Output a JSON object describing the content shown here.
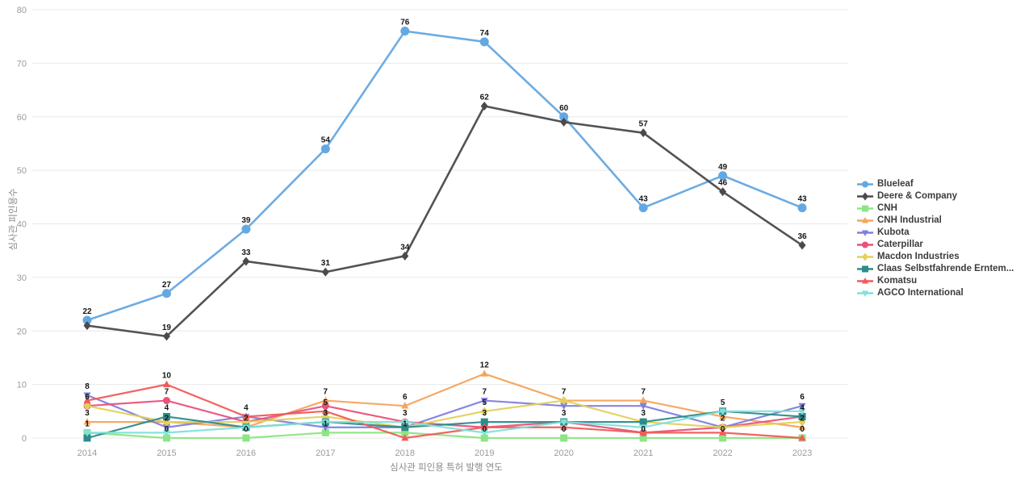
{
  "chart_data": {
    "type": "line",
    "title": "",
    "xlabel": "심사관 피인용 특허 발행 연도",
    "ylabel": "심사관 피인용수",
    "x": [
      2014,
      2015,
      2016,
      2017,
      2018,
      2019,
      2020,
      2021,
      2022,
      2023
    ],
    "ylim": [
      0,
      80
    ],
    "yticks": [
      0,
      10,
      20,
      30,
      40,
      50,
      60,
      70,
      80
    ],
    "grid": true,
    "legend_position": "right",
    "series": [
      {
        "name": "Blueleaf",
        "color": "#64a8e2",
        "marker": "circle",
        "lw": 2.6,
        "ms": 5.5,
        "values": [
          22,
          27,
          39,
          54,
          76,
          74,
          60,
          43,
          49,
          43
        ],
        "labels": [
          22,
          27,
          39,
          54,
          76,
          74,
          60,
          43,
          49,
          43
        ]
      },
      {
        "name": "Deere & Company",
        "color": "#4a4a4a",
        "marker": "diamond",
        "lw": 2.6,
        "ms": 4.5,
        "values": [
          21,
          19,
          33,
          31,
          34,
          62,
          59,
          57,
          46,
          36
        ],
        "labels": [
          null,
          19,
          33,
          31,
          34,
          62,
          null,
          57,
          46,
          36
        ]
      },
      {
        "name": "CNH",
        "color": "#8de584",
        "marker": "square",
        "lw": 2.2,
        "ms": 4.5,
        "values": [
          1,
          0,
          0,
          1,
          1,
          0,
          0,
          0,
          0,
          0
        ],
        "labels": [
          1,
          0,
          0,
          1,
          1,
          0,
          0,
          0,
          0,
          null
        ]
      },
      {
        "name": "CNH Industrial",
        "color": "#f5a45c",
        "marker": "triangle-up",
        "lw": 2.2,
        "ms": 4.5,
        "values": [
          3,
          3,
          2,
          7,
          6,
          12,
          7,
          7,
          4,
          2
        ],
        "labels": [
          3,
          null,
          null,
          7,
          6,
          12,
          null,
          7,
          null,
          2
        ]
      },
      {
        "name": "Kubota",
        "color": "#7f7fe0",
        "marker": "triangle-down",
        "lw": 2.2,
        "ms": 4.5,
        "values": [
          8,
          2,
          4,
          2,
          2,
          7,
          6,
          6,
          2,
          6
        ],
        "labels": [
          8,
          2,
          4,
          null,
          null,
          7,
          null,
          null,
          null,
          6
        ]
      },
      {
        "name": "Caterpillar",
        "color": "#e8537c",
        "marker": "circle",
        "lw": 2.2,
        "ms": 4.5,
        "values": [
          6,
          7,
          3,
          6,
          3,
          2,
          3,
          1,
          2,
          4
        ],
        "labels": [
          6,
          7,
          null,
          null,
          3,
          null,
          null,
          null,
          null,
          null
        ]
      },
      {
        "name": "Macdon Industries",
        "color": "#e2d15c",
        "marker": "diamond",
        "lw": 2.2,
        "ms": 4.5,
        "values": [
          6,
          3,
          3,
          4,
          2,
          5,
          7,
          3,
          2,
          3
        ],
        "labels": [
          null,
          null,
          null,
          null,
          null,
          5,
          7,
          null,
          2,
          null
        ]
      },
      {
        "name": "Claas Selbstfahrende Erntem...",
        "color": "#2e8b8b",
        "marker": "square",
        "lw": 2.2,
        "ms": 4.5,
        "values": [
          0,
          4,
          2,
          3,
          2,
          3,
          3,
          3,
          5,
          4
        ],
        "labels": [
          null,
          4,
          2,
          3,
          null,
          3,
          3,
          3,
          5,
          4
        ]
      },
      {
        "name": "Komatsu",
        "color": "#f15b57",
        "marker": "triangle-up",
        "lw": 2.2,
        "ms": 4.5,
        "values": [
          7,
          10,
          4,
          5,
          0,
          2,
          2,
          1,
          1,
          0
        ],
        "labels": [
          null,
          10,
          null,
          5,
          null,
          null,
          null,
          null,
          null,
          0
        ]
      },
      {
        "name": "AGCO International",
        "color": "#7fe2d9",
        "marker": "triangle-down",
        "lw": 2.2,
        "ms": 4.5,
        "values": [
          1,
          1,
          2,
          3,
          3,
          1,
          3,
          2,
          5,
          5
        ],
        "labels": [
          null,
          null,
          null,
          null,
          null,
          null,
          null,
          null,
          null,
          null
        ]
      }
    ]
  }
}
